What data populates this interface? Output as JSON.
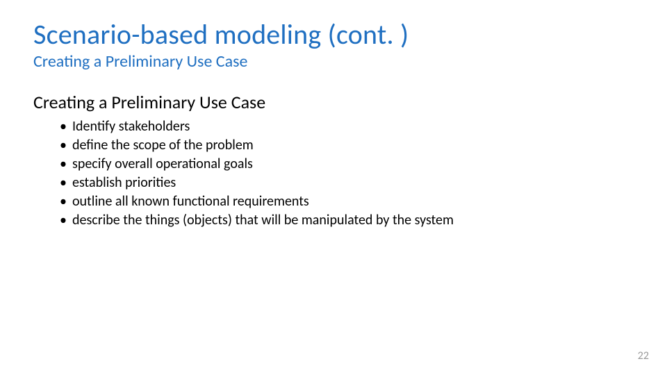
{
  "title": "Scenario-based modeling (cont. )",
  "subtitle": "Creating a Preliminary Use Case",
  "section_heading": "Creating a Preliminary Use Case",
  "bullets": [
    "Identify stakeholders",
    "define the scope of the problem",
    "specify overall operational goals",
    "establish priorities",
    "outline all known functional requirements",
    "describe the things (objects) that will be manipulated by the system"
  ],
  "page_number": "22",
  "colors": {
    "title": "#1f6fc1",
    "subtitle": "#1f6fc1",
    "body": "#000000",
    "page_number": "#9a9a9a",
    "background": "#ffffff"
  },
  "fonts": {
    "title_size_pt": 40,
    "subtitle_size_pt": 24,
    "section_heading_size_pt": 26,
    "bullet_size_pt": 20,
    "page_number_size_pt": 16
  }
}
